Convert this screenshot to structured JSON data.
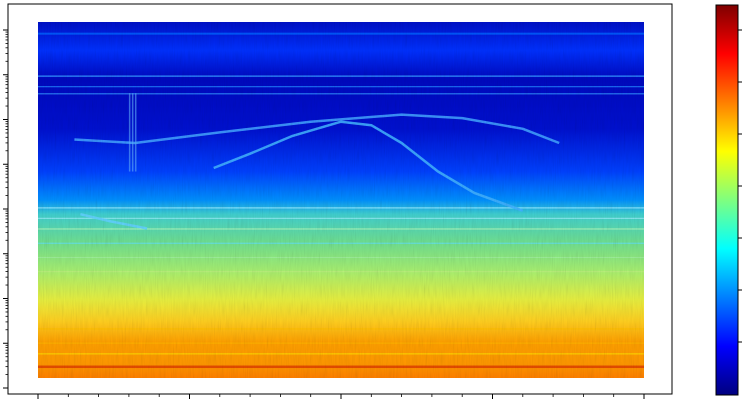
{
  "chart_data": {
    "type": "heatmap",
    "title": "",
    "xlabel": "",
    "ylabel": "",
    "y_scale": "log",
    "colormap": "jet",
    "colormap_stops": [
      "#00007f",
      "#0000ff",
      "#007fff",
      "#00ffff",
      "#7fff7f",
      "#ffff00",
      "#ff7f00",
      "#ff0000",
      "#7f0000"
    ],
    "grid": false,
    "legend": "none",
    "tick_labels_visible": false,
    "x_major_tick_count": 5,
    "y_decade_count": 9,
    "colorbar_tick_count": 7,
    "colorbar": {
      "placement": "right"
    },
    "spectral_features": [
      {
        "name": "harmonic-ridge-upper",
        "y_decade_fraction": [
          0.67,
          0.66,
          0.69,
          0.72,
          0.74,
          0.73,
          0.7,
          0.66
        ]
      },
      {
        "name": "doppler-arc",
        "y_decade_fraction": [
          0.59,
          0.63,
          0.68,
          0.72,
          0.71,
          0.66,
          0.58,
          0.52,
          0.47
        ]
      },
      {
        "name": "doppler-tail",
        "y_decade_fraction": [
          0.46,
          0.44,
          0.42
        ]
      }
    ]
  }
}
